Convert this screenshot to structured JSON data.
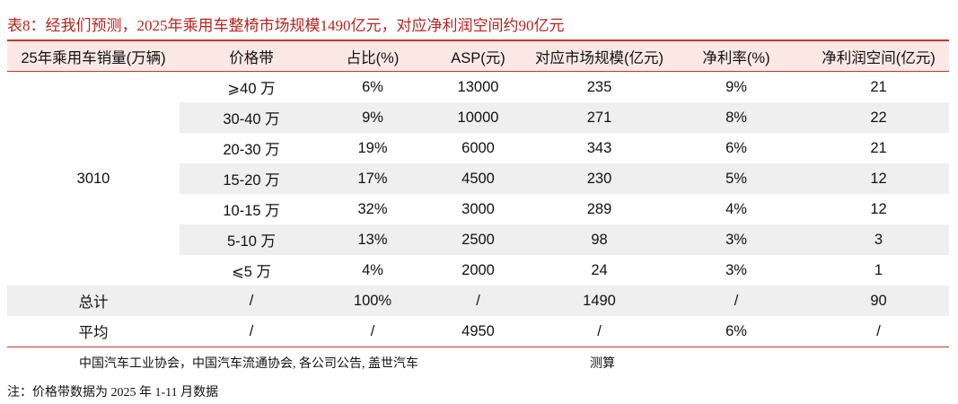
{
  "title": "表8：经我们预测，2025年乘用车整椅市场规模1490亿元，对应净利润空间约90亿元",
  "table": {
    "header": [
      "25年乘用车销量(万辆)",
      "价格带",
      "占比(%)",
      "ASP(元)",
      "对应市场规模(亿元)",
      "净利率(%)",
      "净利润空间(亿元)"
    ],
    "rows": [
      [
        "3010",
        "⩾40 万",
        "6%",
        "13000",
        "235",
        "9%",
        "21"
      ],
      [
        "30-40 万",
        "9%",
        "10000",
        "271",
        "8%",
        "22"
      ],
      [
        "20-30 万",
        "19%",
        "6000",
        "343",
        "6%",
        "21"
      ],
      [
        "15-20 万",
        "17%",
        "4500",
        "230",
        "5%",
        "12"
      ],
      [
        "10-15 万",
        "32%",
        "3000",
        "289",
        "4%",
        "12"
      ],
      [
        "5-10 万",
        "13%",
        "2500",
        "98",
        "3%",
        "3"
      ],
      [
        "⩽5 万",
        "4%",
        "2000",
        "24",
        "3%",
        "1"
      ],
      [
        "总计",
        "/",
        "100%",
        "/",
        "1490",
        "/",
        "90"
      ],
      [
        "平均",
        "/",
        "/",
        "4950",
        "/",
        "6%",
        "/"
      ]
    ]
  },
  "source": [
    "中国汽车工业协会，中国汽车流通协会, 各公司公告, 盖世汽车",
    "测算"
  ],
  "note": "注：价格带数据为 2025 年 1-11 月数据"
}
